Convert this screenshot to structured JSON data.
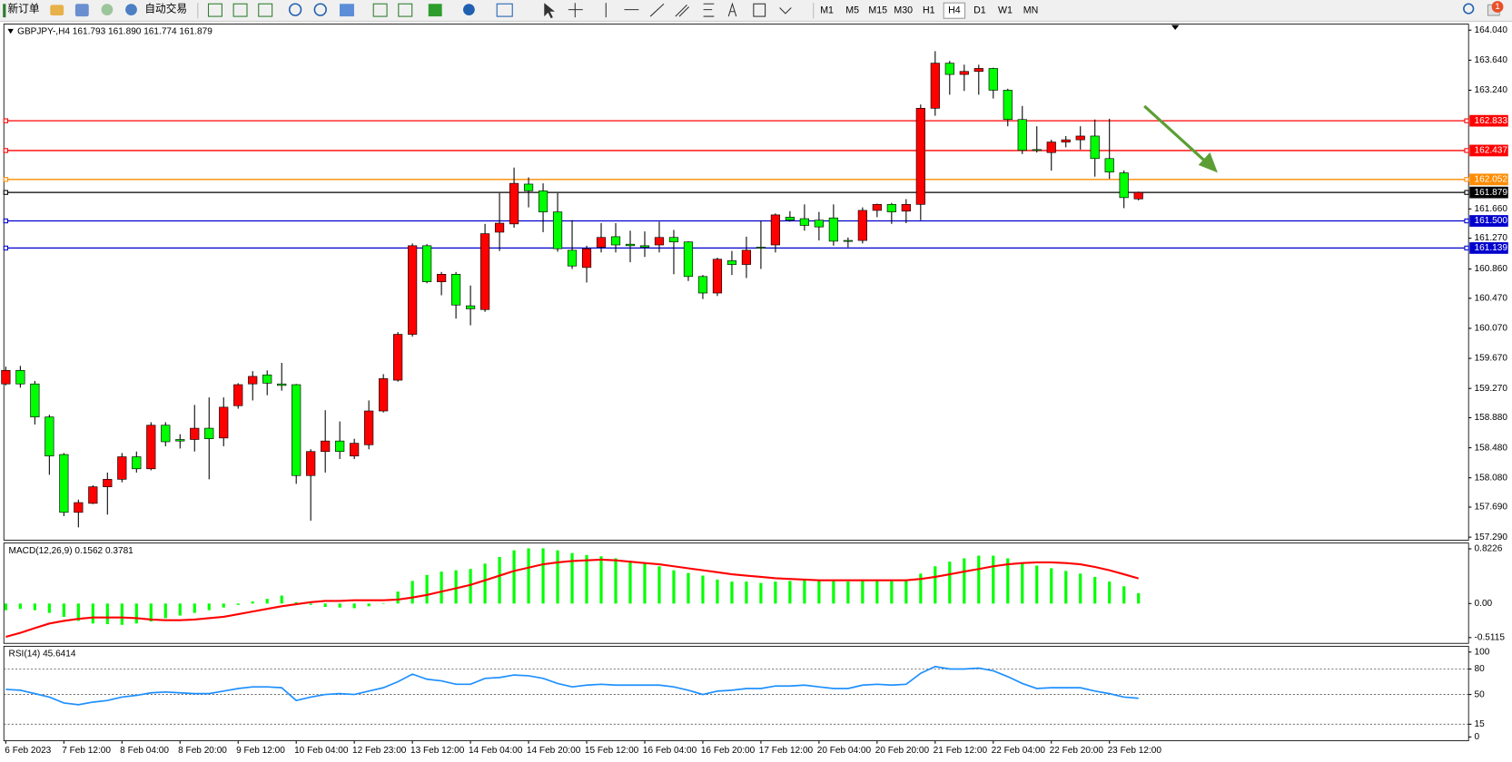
{
  "toolbar": {
    "new_order": "新订单",
    "auto_trading": "自动交易",
    "timeframes": [
      "M1",
      "M5",
      "M15",
      "M30",
      "H1",
      "H4",
      "D1",
      "W1",
      "MN"
    ],
    "active_timeframe": "H4",
    "notification_count": "1"
  },
  "chart_data": [
    {
      "type": "candlestick",
      "title": "GBPJPY-,H4  161.793 161.890 161.774 161.879",
      "categories": [
        "6 Feb 2023",
        null,
        null,
        null,
        "7 Feb 12:00",
        null,
        null,
        null,
        "8 Feb 04:00",
        null,
        null,
        null,
        "8 Feb 20:00",
        null,
        null,
        null,
        "9 Feb 12:00",
        null,
        null,
        null,
        "10 Feb 04:00",
        null,
        null,
        null,
        "12 Feb 23:00",
        null,
        null,
        null,
        "13 Feb 12:00",
        null,
        null,
        null,
        "14 Feb 04:00",
        null,
        null,
        null,
        "14 Feb 20:00",
        null,
        null,
        null,
        "15 Feb 12:00",
        null,
        null,
        null,
        "16 Feb 04:00",
        null,
        null,
        null,
        "16 Feb 20:00",
        null,
        null,
        null,
        "17 Feb 12:00",
        null,
        null,
        null,
        "20 Feb 04:00",
        null,
        null,
        null,
        "20 Feb 20:00",
        null,
        null,
        null,
        "21 Feb 12:00",
        null,
        null,
        null,
        "22 Feb 04:00",
        null,
        null,
        null,
        "22 Feb 20:00",
        null,
        null,
        null,
        "23 Feb 12:00",
        null,
        null
      ],
      "open": [
        159.33,
        159.51,
        159.33,
        158.89,
        158.39,
        157.62,
        157.74,
        157.96,
        158.06,
        158.36,
        158.2,
        158.78,
        158.59,
        158.59,
        158.74,
        158.61,
        159.04,
        159.33,
        159.45,
        159.33,
        159.32,
        158.11,
        158.43,
        158.57,
        158.37,
        158.52,
        158.97,
        159.38,
        159.99,
        161.17,
        160.69,
        160.79,
        160.37,
        160.32,
        161.35,
        161.46,
        161.99,
        161.9,
        161.62,
        161.11,
        160.88,
        161.15,
        161.29,
        161.19,
        161.17,
        161.18,
        161.28,
        161.22,
        160.76,
        160.54,
        160.97,
        160.92,
        161.15,
        161.18,
        161.55,
        161.53,
        161.51,
        161.54,
        161.24,
        161.24,
        161.64,
        161.72,
        161.63,
        161.72,
        163.0,
        163.6,
        163.45,
        163.49,
        163.53,
        163.24,
        162.85,
        162.45,
        162.41,
        162.55,
        162.58,
        162.63,
        162.33,
        162.14,
        161.793
      ],
      "high": [
        159.56,
        159.57,
        159.37,
        158.92,
        158.41,
        157.79,
        157.98,
        158.15,
        158.41,
        158.43,
        158.82,
        158.82,
        158.66,
        159.05,
        159.15,
        159.15,
        159.34,
        159.5,
        159.51,
        159.61,
        159.33,
        158.46,
        158.98,
        158.83,
        158.6,
        159.11,
        159.46,
        160.02,
        161.2,
        161.19,
        160.82,
        160.82,
        160.64,
        161.46,
        161.87,
        162.21,
        162.08,
        162.0,
        161.87,
        161.51,
        161.17,
        161.47,
        161.47,
        161.37,
        161.36,
        161.49,
        161.38,
        161.23,
        160.78,
        161.01,
        161.1,
        161.29,
        161.5,
        161.6,
        161.63,
        161.72,
        161.62,
        161.72,
        161.28,
        161.68,
        161.73,
        161.74,
        161.79,
        163.05,
        163.76,
        163.63,
        163.58,
        163.58,
        163.54,
        163.26,
        163.03,
        162.76,
        162.58,
        162.63,
        162.76,
        162.85,
        162.86,
        162.17,
        161.89
      ],
      "low": [
        159.31,
        159.28,
        158.79,
        158.12,
        157.57,
        157.42,
        157.73,
        157.59,
        158.02,
        158.15,
        158.18,
        158.5,
        158.47,
        158.43,
        158.06,
        158.5,
        159.0,
        159.11,
        159.18,
        159.24,
        158.0,
        157.51,
        158.15,
        158.33,
        158.33,
        158.46,
        158.95,
        159.36,
        159.96,
        160.67,
        160.51,
        160.2,
        160.11,
        160.29,
        161.1,
        161.41,
        161.68,
        161.35,
        161.09,
        160.86,
        160.68,
        161.08,
        161.08,
        160.95,
        161.02,
        161.08,
        160.79,
        160.7,
        160.46,
        160.5,
        160.78,
        160.74,
        160.86,
        161.08,
        161.49,
        161.37,
        161.24,
        161.17,
        161.15,
        161.2,
        161.55,
        161.46,
        161.47,
        161.51,
        162.9,
        163.18,
        163.23,
        163.18,
        163.13,
        162.76,
        162.39,
        162.41,
        162.17,
        162.48,
        162.45,
        162.09,
        162.06,
        161.67,
        161.774
      ],
      "close": [
        159.51,
        159.33,
        158.89,
        158.37,
        157.62,
        157.75,
        157.96,
        158.06,
        158.36,
        158.2,
        158.78,
        158.56,
        158.57,
        158.74,
        158.6,
        159.02,
        159.32,
        159.43,
        159.34,
        159.31,
        158.11,
        158.43,
        158.57,
        158.43,
        158.54,
        158.97,
        159.4,
        159.99,
        161.17,
        160.69,
        160.79,
        160.38,
        160.33,
        161.33,
        161.47,
        162.0,
        161.9,
        161.62,
        161.13,
        160.9,
        161.13,
        161.28,
        161.18,
        161.17,
        161.15,
        161.28,
        161.22,
        160.76,
        160.54,
        160.99,
        160.92,
        161.11,
        161.14,
        161.58,
        161.51,
        161.44,
        161.42,
        161.23,
        161.23,
        161.64,
        161.72,
        161.62,
        161.72,
        163.0,
        163.6,
        163.45,
        163.49,
        163.53,
        163.24,
        162.85,
        162.44,
        162.44,
        162.55,
        162.58,
        162.63,
        162.33,
        162.15,
        161.81,
        161.879
      ],
      "up_color": "#ff0000",
      "down_color": "#00ff00",
      "ylim": [
        157.25,
        164.12
      ],
      "yticks": [
        {
          "value": 164.04,
          "label": "164.040"
        },
        {
          "value": 163.64,
          "label": "163.640"
        },
        {
          "value": 163.24,
          "label": "163.240"
        },
        {
          "value": 161.66,
          "label": "161.660"
        },
        {
          "value": 161.27,
          "label": "161.270"
        },
        {
          "value": 160.86,
          "label": "160.860"
        },
        {
          "value": 160.47,
          "label": "160.470"
        },
        {
          "value": 160.07,
          "label": "160.070"
        },
        {
          "value": 159.67,
          "label": "159.670"
        },
        {
          "value": 159.27,
          "label": "159.270"
        },
        {
          "value": 158.88,
          "label": "158.880"
        },
        {
          "value": 158.48,
          "label": "158.480"
        },
        {
          "value": 158.08,
          "label": "158.080"
        },
        {
          "value": 157.69,
          "label": "157.690"
        },
        {
          "value": 157.29,
          "label": "157.290"
        }
      ],
      "levels": [
        {
          "value": 162.833,
          "label": "162.833",
          "color": "#ff0000"
        },
        {
          "value": 162.437,
          "label": "162.437",
          "color": "#ff0000"
        },
        {
          "value": 162.052,
          "label": "162.052",
          "color": "#ff8c00"
        },
        {
          "value": 161.879,
          "label": "161.879",
          "color": "#000000"
        },
        {
          "value": 161.5,
          "label": "161.500",
          "color": "#0000cd"
        },
        {
          "value": 161.139,
          "label": "161.139",
          "color": "#0000cd"
        }
      ]
    },
    {
      "type": "macd",
      "title": "MACD(12,26,9) 0.1562 0.3781",
      "values": [
        -0.1,
        -0.08,
        -0.1,
        -0.14,
        -0.2,
        -0.26,
        -0.3,
        -0.31,
        -0.32,
        -0.3,
        -0.27,
        -0.22,
        -0.18,
        -0.14,
        -0.1,
        -0.06,
        -0.02,
        0.03,
        0.07,
        0.12,
        0.02,
        -0.02,
        -0.05,
        -0.06,
        -0.07,
        -0.04,
        0.0,
        0.18,
        0.34,
        0.43,
        0.48,
        0.5,
        0.52,
        0.6,
        0.7,
        0.8,
        0.83,
        0.83,
        0.8,
        0.76,
        0.73,
        0.71,
        0.68,
        0.64,
        0.6,
        0.56,
        0.5,
        0.46,
        0.42,
        0.36,
        0.33,
        0.33,
        0.31,
        0.33,
        0.34,
        0.35,
        0.34,
        0.34,
        0.33,
        0.34,
        0.35,
        0.35,
        0.35,
        0.45,
        0.56,
        0.63,
        0.68,
        0.72,
        0.72,
        0.68,
        0.6,
        0.57,
        0.53,
        0.49,
        0.45,
        0.4,
        0.33,
        0.26,
        0.1562
      ],
      "signal": [
        -0.5,
        -0.44,
        -0.37,
        -0.3,
        -0.26,
        -0.23,
        -0.21,
        -0.21,
        -0.21,
        -0.22,
        -0.24,
        -0.25,
        -0.25,
        -0.24,
        -0.22,
        -0.2,
        -0.16,
        -0.12,
        -0.08,
        -0.04,
        -0.01,
        0.02,
        0.04,
        0.04,
        0.05,
        0.05,
        0.05,
        0.06,
        0.09,
        0.13,
        0.18,
        0.23,
        0.28,
        0.35,
        0.42,
        0.49,
        0.54,
        0.59,
        0.62,
        0.64,
        0.65,
        0.66,
        0.65,
        0.63,
        0.61,
        0.59,
        0.56,
        0.53,
        0.5,
        0.47,
        0.44,
        0.42,
        0.4,
        0.38,
        0.37,
        0.36,
        0.35,
        0.35,
        0.35,
        0.35,
        0.35,
        0.35,
        0.35,
        0.37,
        0.4,
        0.44,
        0.48,
        0.52,
        0.56,
        0.59,
        0.61,
        0.62,
        0.62,
        0.61,
        0.59,
        0.55,
        0.5,
        0.44,
        0.3781
      ],
      "color": "#00ff00",
      "signal_color": "#ff0000",
      "ylim": [
        -0.5985,
        0.9096
      ],
      "yticks": [
        0.8226,
        {
          "value": 0,
          "label": "0.00"
        },
        -0.5115
      ]
    },
    {
      "type": "rsi",
      "title": "RSI(14) 45.6414",
      "values": [
        56,
        55,
        51,
        47,
        40,
        38,
        41,
        43,
        47,
        49,
        52,
        53,
        52,
        51,
        51,
        54,
        57,
        59,
        59,
        58,
        43,
        47,
        50,
        51,
        50,
        54,
        58,
        65,
        74,
        68,
        66,
        62,
        62,
        69,
        70,
        73,
        72,
        69,
        63,
        59,
        61,
        62,
        61,
        61,
        61,
        61,
        59,
        55,
        50,
        54,
        55,
        57,
        57,
        60,
        60,
        61,
        59,
        57,
        57,
        61,
        62,
        61,
        62,
        75,
        83,
        80,
        80,
        81,
        78,
        71,
        63,
        57,
        58,
        58,
        58,
        54,
        51,
        47,
        45.6414
      ],
      "color": "#1e90ff",
      "ylim": [
        -4.5,
        106.8
      ],
      "yticks": [
        100,
        80,
        50,
        15,
        0
      ],
      "levels": [
        80,
        50,
        15
      ]
    }
  ]
}
